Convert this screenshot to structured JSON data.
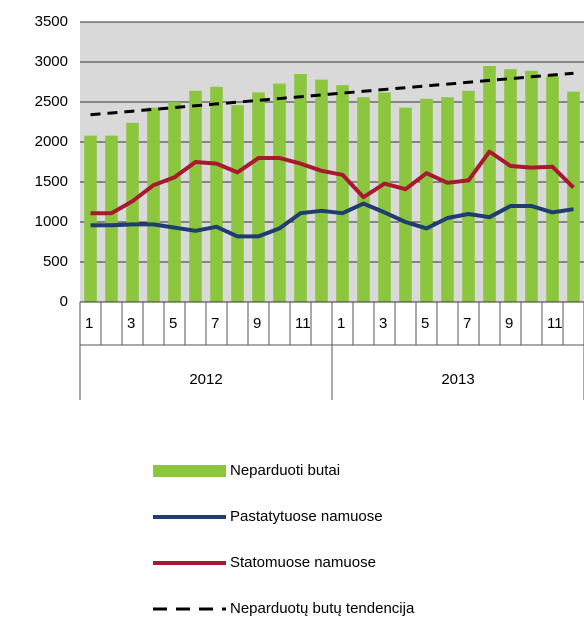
{
  "chart_data": {
    "type": "bar",
    "categories": [
      "1",
      null,
      "3",
      null,
      "5",
      null,
      "7",
      null,
      "9",
      null,
      "11",
      null,
      "1",
      null,
      "3",
      null,
      "5",
      null,
      "7",
      null,
      "9",
      null,
      "11",
      null
    ],
    "groups": [
      "2012",
      "2013"
    ],
    "ylim": [
      0,
      3500
    ],
    "yticks": [
      0,
      500,
      1000,
      1500,
      2000,
      2500,
      3000,
      3500
    ],
    "grid": true,
    "legend": "bottom",
    "series": [
      {
        "name": "Neparduoti butai",
        "type": "bar",
        "color": "#8cc63f",
        "values": [
          2080,
          2080,
          2240,
          2430,
          2500,
          2640,
          2690,
          2460,
          2620,
          2730,
          2850,
          2780,
          2710,
          2560,
          2620,
          2430,
          2540,
          2560,
          2640,
          2950,
          2910,
          2890,
          2820,
          2630
        ]
      },
      {
        "name": "Pastatytuose namuose",
        "type": "line",
        "color": "#1f3d6e",
        "values": [
          960,
          960,
          970,
          970,
          930,
          890,
          940,
          820,
          820,
          920,
          1110,
          1140,
          1110,
          1230,
          1120,
          1000,
          920,
          1050,
          1100,
          1060,
          1200,
          1200,
          1120,
          1160
        ]
      },
      {
        "name": "Statomuose namuose",
        "type": "line",
        "color": "#a6192e",
        "values": [
          1110,
          1110,
          1260,
          1460,
          1560,
          1750,
          1730,
          1620,
          1800,
          1800,
          1730,
          1640,
          1590,
          1310,
          1480,
          1410,
          1610,
          1490,
          1520,
          1880,
          1700,
          1680,
          1690,
          1430
        ]
      },
      {
        "name": "Neparduotų butų tendencija",
        "type": "line",
        "dashed": true,
        "color": "#000000",
        "values": [
          2340,
          2363,
          2385,
          2408,
          2430,
          2453,
          2476,
          2498,
          2521,
          2543,
          2566,
          2589,
          2611,
          2634,
          2657,
          2679,
          2702,
          2724,
          2747,
          2770,
          2792,
          2815,
          2837,
          2860
        ]
      }
    ]
  }
}
